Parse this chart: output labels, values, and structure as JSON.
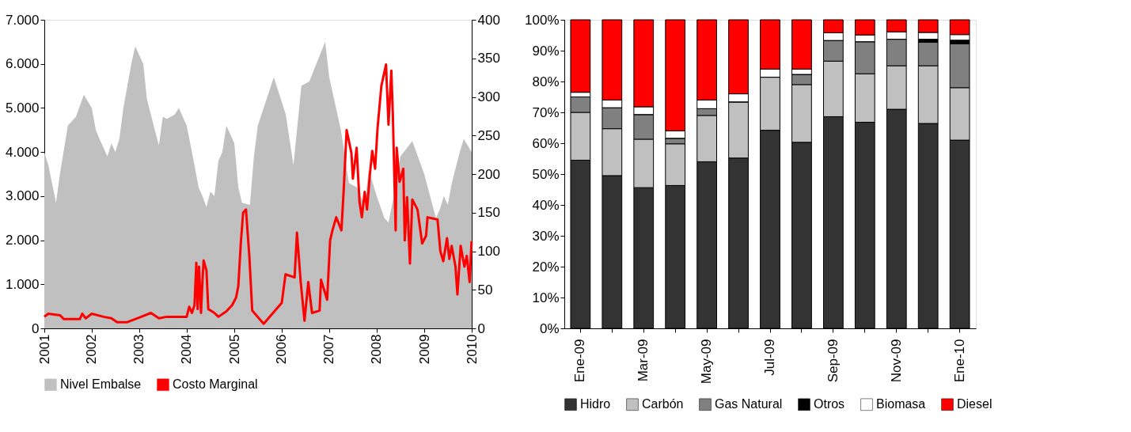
{
  "chart_data": [
    {
      "type": "area",
      "xlim": [
        "2001",
        "2010"
      ],
      "xticks": [
        "2001",
        "2002",
        "2003",
        "2004",
        "2005",
        "2006",
        "2007",
        "2008",
        "2009",
        "2010"
      ],
      "ylim": [
        0,
        7000
      ],
      "yticks": [
        {
          "value": 0,
          "label": "0"
        },
        {
          "value": 1000,
          "label": "1.000"
        },
        {
          "value": 2000,
          "label": "2.000"
        },
        {
          "value": 3000,
          "label": "3.000"
        },
        {
          "value": 4000,
          "label": "4.000"
        },
        {
          "value": 5000,
          "label": "5.000"
        },
        {
          "value": 6000,
          "label": "6.000"
        },
        {
          "value": 7000,
          "label": "7.000"
        }
      ],
      "y2lim": [
        0,
        400
      ],
      "y2ticks": [
        0,
        50,
        100,
        150,
        200,
        250,
        300,
        350,
        400
      ],
      "legend": "bottom",
      "grid": false,
      "series": [
        {
          "name": "Nivel Embalse",
          "type": "area",
          "color": "#c0c0c0",
          "x": [
            "2001-01",
            "2001-02",
            "2001-04",
            "2001-05",
            "2001-07",
            "2001-09",
            "2001-11",
            "2002-01",
            "2002-02",
            "2002-03",
            "2002-05",
            "2002-06",
            "2002-07",
            "2002-08",
            "2002-09",
            "2002-11",
            "2002-12",
            "2003-02",
            "2003-03",
            "2003-05",
            "2003-06",
            "2003-07",
            "2003-08",
            "2003-10",
            "2003-11",
            "2004-01",
            "2004-03",
            "2004-04",
            "2004-05",
            "2004-06",
            "2004-07",
            "2004-08",
            "2004-09",
            "2004-10",
            "2004-11",
            "2005-01",
            "2005-02",
            "2005-03",
            "2005-05",
            "2005-06",
            "2005-07",
            "2005-11",
            "2006-02",
            "2006-04",
            "2006-06",
            "2006-08",
            "2006-12",
            "2007-01",
            "2007-04",
            "2007-06",
            "2007-08",
            "2007-10",
            "2007-11",
            "2008-01",
            "2008-03",
            "2008-04",
            "2008-06",
            "2008-07",
            "2008-10",
            "2009-01",
            "2009-04",
            "2009-05",
            "2009-06",
            "2009-07",
            "2009-08",
            "2009-10",
            "2009-11",
            "2010-01"
          ],
          "values": [
            4000,
            3700,
            2850,
            3500,
            4600,
            4800,
            5300,
            5000,
            4500,
            4300,
            3900,
            4200,
            4000,
            4300,
            5000,
            6000,
            6400,
            6000,
            5200,
            4500,
            4150,
            4800,
            4750,
            4850,
            5000,
            4600,
            3700,
            3200,
            3000,
            2750,
            3100,
            3000,
            3800,
            4000,
            4600,
            4200,
            3200,
            2850,
            2800,
            3900,
            4600,
            5700,
            4850,
            3700,
            5500,
            5600,
            6500,
            5700,
            4500,
            3300,
            3200,
            2800,
            3600,
            3000,
            2500,
            2400,
            3300,
            3900,
            4250,
            3500,
            2500,
            2700,
            3000,
            2800,
            3300,
            4000,
            4300,
            4000
          ]
        },
        {
          "name": "Costo Marginal",
          "type": "line",
          "axis": "y2",
          "color": "#ff0000",
          "x": [
            "2001-01-01",
            "2001-02-01",
            "2001-05-01",
            "2001-06-01",
            "2001-10-01",
            "2001-10-20",
            "2001-11-15",
            "2002-01-01",
            "2002-04-01",
            "2002-06-01",
            "2002-07-15",
            "2002-10-01",
            "2003-01-01",
            "2003-04-01",
            "2003-06-01",
            "2003-08-01",
            "2004-01-01",
            "2004-01-20",
            "2004-02-10",
            "2004-03-01",
            "2004-03-15",
            "2004-03-25",
            "2004-04-05",
            "2004-04-20",
            "2004-05-01",
            "2004-05-10",
            "2004-06-01",
            "2004-06-15",
            "2004-08-01",
            "2004-09-01",
            "2004-11-01",
            "2004-12-15",
            "2005-01-15",
            "2005-02-01",
            "2005-02-20",
            "2005-03-10",
            "2005-04-01",
            "2005-04-27",
            "2005-05-19",
            "2005-08-15",
            "2006-01-01",
            "2006-01-30",
            "2006-04-10",
            "2006-04-28",
            "2006-05-27",
            "2006-06-25",
            "2006-07-24",
            "2006-08-22",
            "2006-10-19",
            "2006-10-30",
            "2006-12-16",
            "2007-01-08",
            "2007-01-26",
            "2007-02-24",
            "2007-04-05",
            "2007-04-23",
            "2007-05-15",
            "2007-06-21",
            "2007-07-02",
            "2007-07-31",
            "2007-08-22",
            "2007-09-09",
            "2007-10-01",
            "2007-10-19",
            "2007-11-10",
            "2007-11-28",
            "2007-12-20",
            "2008-01-08",
            "2008-02-06",
            "2008-03-13",
            "2008-04-01",
            "2008-04-23",
            "2008-05-04",
            "2008-05-26",
            "2008-06-03",
            "2008-06-25",
            "2008-07-24",
            "2008-08-04",
            "2008-08-22",
            "2008-09-13",
            "2008-10-01",
            "2008-11-10",
            "2008-12-16",
            "2009-01-15",
            "2009-01-26",
            "2009-04-13",
            "2009-05-05",
            "2009-05-27",
            "2009-06-25",
            "2009-07-13",
            "2009-07-31",
            "2009-08-29",
            "2009-09-13",
            "2009-10-08",
            "2009-11-06",
            "2009-11-24",
            "2009-12-16",
            "2009-12-31"
          ],
          "values": [
            15,
            19,
            17,
            12,
            12,
            19,
            13,
            19,
            15,
            13,
            8,
            8,
            14,
            20,
            13,
            15,
            15,
            28,
            20,
            30,
            85,
            25,
            80,
            20,
            60,
            88,
            75,
            25,
            20,
            15,
            22,
            30,
            40,
            55,
            110,
            150,
            154,
            93,
            23,
            6,
            33,
            70,
            66,
            124,
            60,
            10,
            60,
            20,
            23,
            63,
            37,
            114,
            127,
            144,
            127,
            181,
            257,
            227,
            194,
            234,
            164,
            144,
            177,
            154,
            200,
            230,
            207,
            260,
            314,
            342,
            264,
            334,
            280,
            127,
            234,
            190,
            207,
            114,
            170,
            84,
            167,
            154,
            110,
            120,
            144,
            141,
            100,
            87,
            117,
            90,
            107,
            80,
            44,
            107,
            80,
            94,
            60,
            113
          ]
        }
      ]
    },
    {
      "type": "bar",
      "stacked": true,
      "categories": [
        "Ene-09",
        null,
        "Mar-09",
        null,
        "May-09",
        null,
        "Jul-09",
        null,
        "Sep-09",
        null,
        "Nov-09",
        null,
        "Ene-10"
      ],
      "ylim": [
        0,
        100
      ],
      "yticks": [
        {
          "value": 0,
          "label": "0%"
        },
        {
          "value": 10,
          "label": "10%"
        },
        {
          "value": 20,
          "label": "20%"
        },
        {
          "value": 30,
          "label": "30%"
        },
        {
          "value": 40,
          "label": "40%"
        },
        {
          "value": 50,
          "label": "50%"
        },
        {
          "value": 60,
          "label": "60%"
        },
        {
          "value": 70,
          "label": "70%"
        },
        {
          "value": 80,
          "label": "80%"
        },
        {
          "value": 90,
          "label": "90%"
        },
        {
          "value": 100,
          "label": "100%"
        }
      ],
      "legend": "bottom",
      "grid": false,
      "series": [
        {
          "name": "Hidro",
          "color": "#333333",
          "values": [
            54.5,
            49.5,
            45.6,
            46.3,
            54,
            55.2,
            64.2,
            60.3,
            68.6,
            66.8,
            71,
            66.4,
            61
          ]
        },
        {
          "name": "Carbón",
          "color": "#c0c0c0",
          "values": [
            15.5,
            15.2,
            15.7,
            13.5,
            15,
            18.2,
            17.2,
            18.7,
            18,
            15.7,
            14.1,
            18.7,
            17
          ]
        },
        {
          "name": "Gas Natural",
          "color": "#808080",
          "values": [
            5,
            6.8,
            8,
            1.8,
            2.2,
            0,
            0,
            3.3,
            6.7,
            10.4,
            8.6,
            7.6,
            14.2
          ]
        },
        {
          "name": "Otros",
          "color": "#000000",
          "values": [
            0,
            0,
            0,
            0,
            0,
            0,
            0,
            0,
            0,
            0,
            0,
            1,
            1.2
          ]
        },
        {
          "name": "Biomasa",
          "color": "#ffffff",
          "values": [
            1.5,
            2.5,
            2.5,
            2.4,
            2.8,
            2.6,
            2.6,
            1.7,
            2.5,
            2.2,
            2.4,
            2.2,
            1.8
          ]
        },
        {
          "name": "Diesel",
          "color": "#ff0000",
          "values": [
            23.5,
            26,
            28.2,
            36,
            26,
            24,
            16,
            16,
            4.2,
            4.9,
            3.9,
            4.1,
            4.8
          ]
        }
      ]
    }
  ]
}
